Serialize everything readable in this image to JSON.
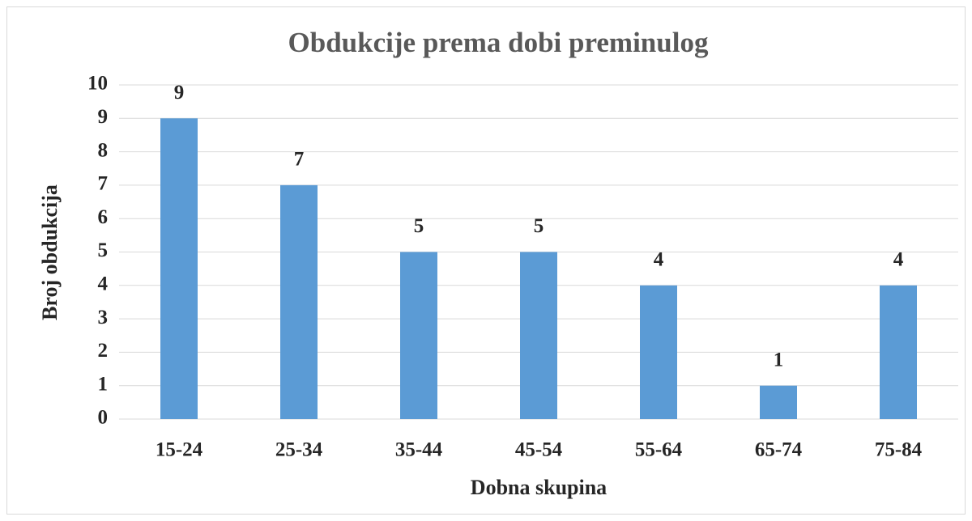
{
  "chart_data": {
    "type": "bar",
    "title": "Obdukcije prema dobi preminulog",
    "x_label": "Dobna skupina",
    "y_label": "Broj obdukcija",
    "categories": [
      "15-24",
      "25-34",
      "35-44",
      "45-54",
      "55-64",
      "65-74",
      "75-84"
    ],
    "values": [
      9,
      7,
      5,
      5,
      4,
      1,
      4
    ],
    "color": "#5b9bd5",
    "ylim": [
      0,
      10
    ],
    "yticks": [
      0,
      1,
      2,
      3,
      4,
      5,
      6,
      7,
      8,
      9,
      10
    ],
    "grid": true
  }
}
